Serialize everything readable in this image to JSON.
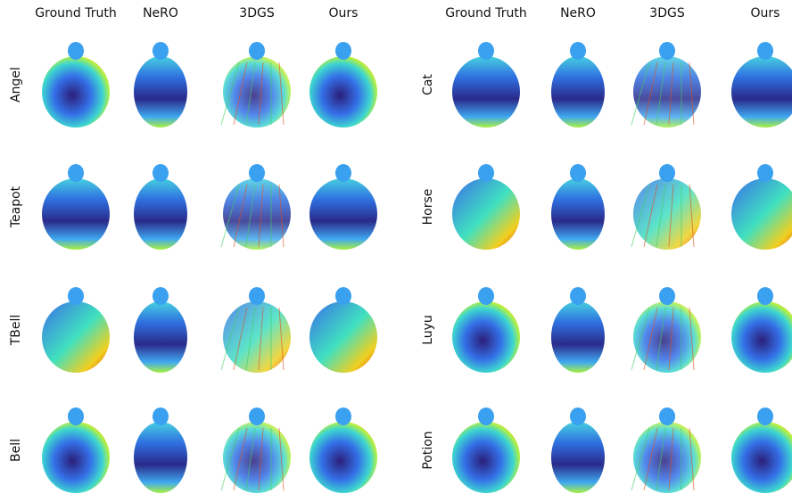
{
  "panels": [
    {
      "columns": [
        "Ground Truth",
        "NeRO",
        "3DGS",
        "Ours"
      ],
      "rows": [
        "Angel",
        "Teapot",
        "TBell",
        "Bell"
      ]
    },
    {
      "columns": [
        "Ground Truth",
        "NeRO",
        "3DGS",
        "Ours"
      ],
      "rows": [
        "Cat",
        "Horse",
        "Luyu",
        "Potion"
      ]
    }
  ]
}
